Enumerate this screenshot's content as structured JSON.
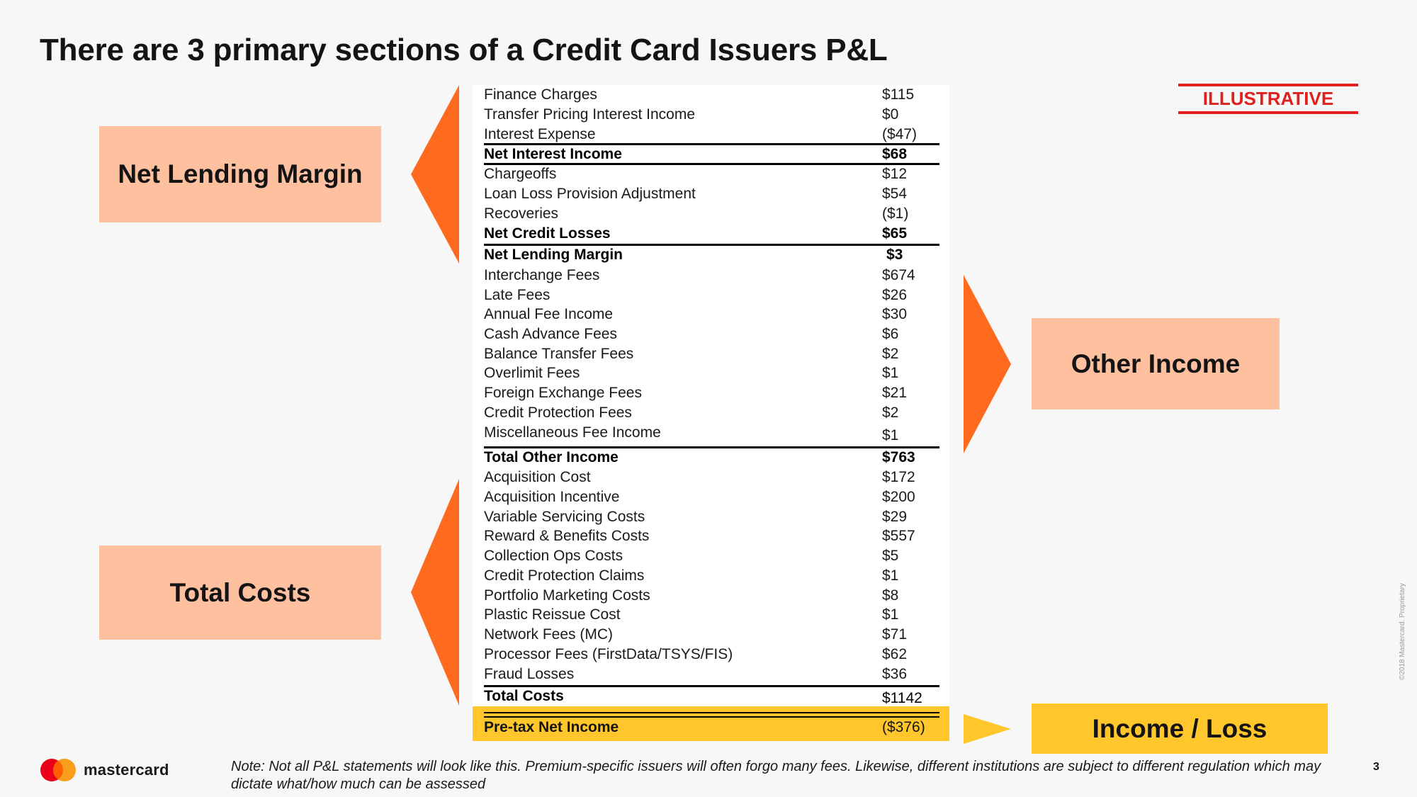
{
  "title": "There are 3 primary sections of a Credit Card Issuers P&L",
  "badge": "ILLUSTRATIVE",
  "labels": {
    "net_lending_margin": "Net Lending Margin",
    "other_income": "Other Income",
    "total_costs": "Total Costs",
    "income_loss": "Income / Loss"
  },
  "colors": {
    "salmon": "#ffc0a0",
    "orange_arrow": "#ff6a1f",
    "yellow": "#ffc72c",
    "red": "#e0201f"
  },
  "rows": [
    {
      "label": "Finance Charges",
      "value": "$115"
    },
    {
      "label": "Transfer Pricing Interest Income",
      "value": "$0"
    },
    {
      "label": "Interest Expense",
      "value": "($47)"
    },
    {
      "label": "Net Interest Income",
      "value": "$68"
    },
    {
      "label": "Chargeoffs",
      "value": "$12"
    },
    {
      "label": "Loan Loss Provision Adjustment",
      "value": "$54"
    },
    {
      "label": "Recoveries",
      "value": "($1)"
    },
    {
      "label": "Net Credit Losses",
      "value": "$65"
    },
    {
      "label": "Net Lending Margin",
      "value": "$3"
    },
    {
      "label": "Interchange Fees",
      "value": "$674"
    },
    {
      "label": "Late Fees",
      "value": "$26"
    },
    {
      "label": "Annual Fee Income",
      "value": "$30"
    },
    {
      "label": "Cash Advance Fees",
      "value": "$6"
    },
    {
      "label": "Balance Transfer Fees",
      "value": "$2"
    },
    {
      "label": "Overlimit Fees",
      "value": "$1"
    },
    {
      "label": "Foreign Exchange Fees",
      "value": "$21"
    },
    {
      "label": "Credit Protection Fees",
      "value": "$2"
    },
    {
      "label": "Miscellaneous Fee Income",
      "value": "$1"
    },
    {
      "label": "Total Other Income",
      "value": "$763"
    },
    {
      "label": "Acquisition Cost",
      "value": "$172"
    },
    {
      "label": "Acquisition Incentive",
      "value": "$200"
    },
    {
      "label": "Variable Servicing Costs",
      "value": "$29"
    },
    {
      "label": "Reward & Benefits Costs",
      "value": "$557"
    },
    {
      "label": "Collection Ops Costs",
      "value": "$5"
    },
    {
      "label": "Credit Protection Claims",
      "value": "$1"
    },
    {
      "label": "Portfolio Marketing Costs",
      "value": "$8"
    },
    {
      "label": "Plastic Reissue Cost",
      "value": "$1"
    },
    {
      "label": "Network Fees (MC)",
      "value": "$71"
    },
    {
      "label": "Processor Fees (FirstData/TSYS/FIS)",
      "value": "$62"
    },
    {
      "label": "Fraud Losses",
      "value": "$36"
    },
    {
      "label": "Total Costs",
      "value": "$1142"
    }
  ],
  "pretax": {
    "label": "Pre-tax Net Income",
    "value": "($376)"
  },
  "note": "Note: Not all P&L statements will look like this. Premium-specific issuers will often forgo many fees.  Likewise, different institutions are subject to different regulation which may dictate what/how much can be assessed",
  "brand": "mastercard",
  "page_number": "3",
  "copyright": "©2018 Mastercard. Proprietary"
}
